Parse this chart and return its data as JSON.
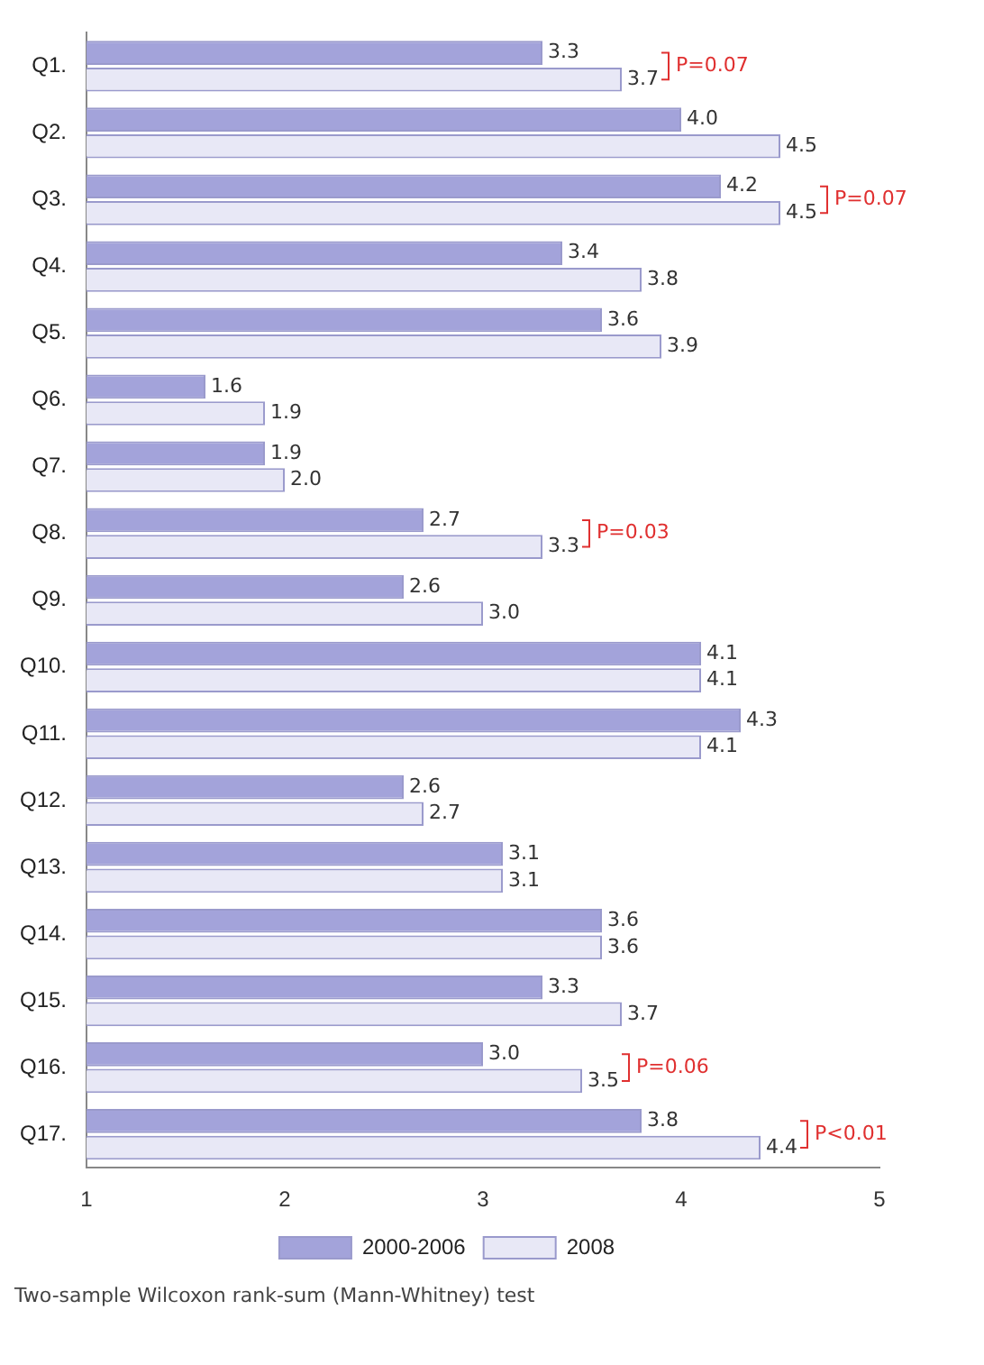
{
  "chart_data": {
    "type": "bar",
    "orientation": "horizontal",
    "categories": [
      "Q1.",
      "Q2.",
      "Q3.",
      "Q4.",
      "Q5.",
      "Q6.",
      "Q7.",
      "Q8.",
      "Q9.",
      "Q10.",
      "Q11.",
      "Q12.",
      "Q13.",
      "Q14.",
      "Q15.",
      "Q16.",
      "Q17."
    ],
    "series": [
      {
        "name": "2000-2006",
        "color": "#a3a3da",
        "values": [
          3.3,
          4.0,
          4.2,
          3.4,
          3.6,
          1.6,
          1.9,
          2.7,
          2.6,
          4.1,
          4.3,
          2.6,
          3.1,
          3.6,
          3.3,
          3.0,
          3.8
        ],
        "value_labels": [
          "3.3",
          "4.0",
          "4.2",
          "3.4",
          "3.6",
          "1.6",
          "1.9",
          "2.7",
          "2.6",
          "4.1",
          "4.3",
          "2.6",
          "3.1",
          "3.6",
          "3.3",
          "3.0",
          "3.8"
        ]
      },
      {
        "name": "2008",
        "color": "#e8e8f6",
        "values": [
          3.7,
          4.5,
          4.5,
          3.8,
          3.9,
          1.9,
          2.0,
          3.3,
          3.0,
          4.1,
          4.1,
          2.7,
          3.1,
          3.6,
          3.7,
          3.5,
          4.4
        ],
        "value_labels": [
          "3.7",
          "4.5",
          "4.5",
          "3.8",
          "3.9",
          "1.9",
          "2.0",
          "3.3",
          "3.0",
          "4.1",
          "4.1",
          "2.7",
          "3.1",
          "3.6",
          "3.7",
          "3.5",
          "4.4"
        ]
      }
    ],
    "xlim": [
      1,
      5
    ],
    "xticks": [
      1,
      2,
      3,
      4,
      5
    ],
    "grid": false,
    "legend": "bottom",
    "annotations": [
      {
        "text": "P=0.07",
        "x": 3.7,
        "y": "Q1."
      },
      {
        "text": "P=0.07",
        "x": 4.5,
        "y": "Q3."
      },
      {
        "text": "P=0.03",
        "x": 3.3,
        "y": "Q8."
      },
      {
        "text": "P=0.06",
        "x": 3.5,
        "y": "Q16."
      },
      {
        "text": "P<0.01",
        "x": 4.4,
        "y": "Q17."
      },
      "Two-sample Wilcoxon rank-sum (Mann-Whitney) test"
    ]
  }
}
